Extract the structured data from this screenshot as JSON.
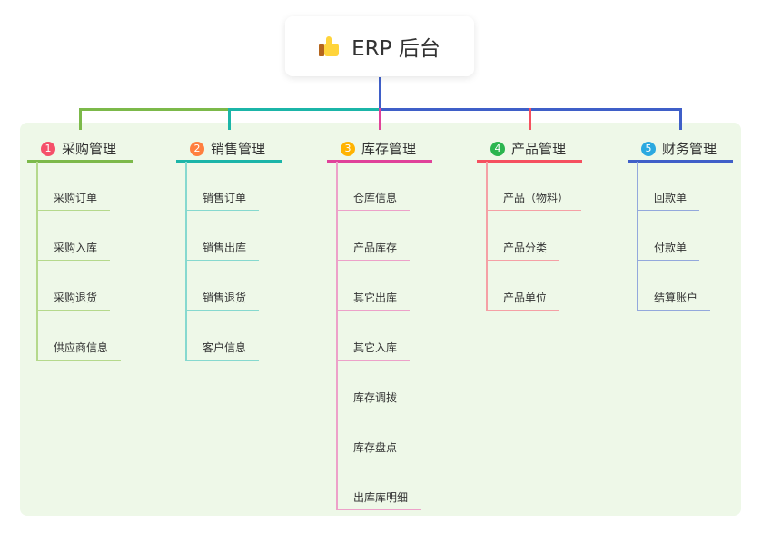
{
  "root": {
    "title": "ERP 后台",
    "icon": "thumbs-up-icon"
  },
  "branches": [
    {
      "number": "1",
      "title": "采购管理",
      "color": "#7cb94a",
      "badge": "#f5506a",
      "light": "#b5d98c",
      "children": [
        "采购订单",
        "采购入库",
        "采购退货",
        "供应商信息"
      ]
    },
    {
      "number": "2",
      "title": "销售管理",
      "color": "#1bb5a8",
      "badge": "#ff7f3f",
      "light": "#86d9cf",
      "children": [
        "销售订单",
        "销售出库",
        "销售退货",
        "客户信息"
      ]
    },
    {
      "number": "3",
      "title": "库存管理",
      "color": "#e0429a",
      "badge": "#ffb300",
      "light": "#eda1c9",
      "children": [
        "仓库信息",
        "产品库存",
        "其它出库",
        "其它入库",
        "库存调拨",
        "库存盘点",
        "出库库明细"
      ]
    },
    {
      "number": "4",
      "title": "产品管理",
      "color": "#f5505f",
      "badge": "#2bb54f",
      "light": "#f5a0a5",
      "children": [
        "产品（物料）",
        "产品分类",
        "产品单位"
      ]
    },
    {
      "number": "5",
      "title": "财务管理",
      "color": "#3f5fc8",
      "badge": "#2ba9e0",
      "light": "#93a8dc",
      "children": [
        "回款单",
        "付款单",
        "结算账户"
      ]
    }
  ]
}
